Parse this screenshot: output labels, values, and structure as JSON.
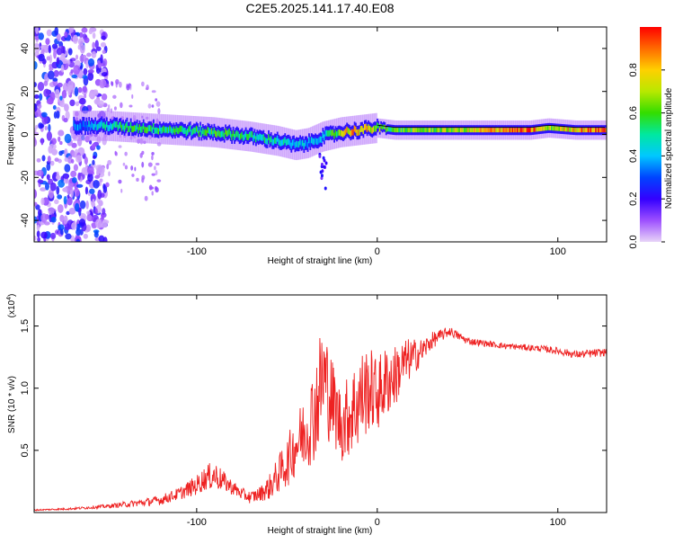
{
  "figure_title": "C2E5.2025.141.17.40.E08",
  "colorbar_stops": [
    "#e8d4f8",
    "#9d4fff",
    "#3300ff",
    "#0044ff",
    "#00c8ff",
    "#00e8a0",
    "#33dd00",
    "#b8e800",
    "#ffd000",
    "#ff6a00",
    "#ff0000"
  ],
  "chart_data": [
    {
      "type": "heatmap",
      "title": "C2E5.2025.141.17.40.E08",
      "xlabel": "Height of straight line (km)",
      "ylabel": "Frequency (Hz)",
      "xlim": [
        -190,
        127
      ],
      "ylim": [
        -50,
        50
      ],
      "xticks": [
        -100,
        0,
        100
      ],
      "yticks": [
        -40,
        -20,
        0,
        20,
        40
      ],
      "colorbar": {
        "label": "Normalized spectral amplitude",
        "range": [
          0,
          1
        ],
        "ticks": [
          "0.0",
          "0.2",
          "0.4",
          "0.6",
          "0.8"
        ]
      },
      "ridge": {
        "description": "dominant spectral band",
        "x": [
          -168,
          -150,
          -130,
          -110,
          -90,
          -70,
          -55,
          -45,
          -38,
          -30,
          -20,
          -10,
          0,
          10,
          30,
          50,
          70,
          85,
          95,
          110,
          127
        ],
        "freq": [
          4,
          4,
          3,
          2,
          1,
          -1,
          -3,
          -5,
          -4,
          -1,
          1,
          2,
          3,
          2,
          2,
          2,
          2,
          2,
          3,
          2,
          2
        ],
        "amplitude": [
          0.35,
          0.5,
          0.6,
          0.55,
          0.6,
          0.55,
          0.5,
          0.45,
          0.4,
          0.45,
          0.75,
          0.9,
          0.7,
          0.65,
          0.7,
          0.75,
          0.95,
          0.95,
          0.7,
          0.9,
          1.0
        ]
      },
      "noise_region": {
        "x": [
          -190,
          -150
        ],
        "freq": [
          -50,
          50
        ],
        "amplitude": "low (0.05-0.3)"
      }
    },
    {
      "type": "line",
      "xlabel": "Height of straight line (km)",
      "ylabel": "SNR (10 * v/v)",
      "exponent_label": "(x10",
      "exponent_power": "4",
      "exponent_close": ")",
      "xlim": [
        -190,
        127
      ],
      "ylim": [
        0,
        17500
      ],
      "xticks": [
        -100,
        0,
        100
      ],
      "yticks": [
        5000,
        10000,
        15000
      ],
      "ytick_labels": [
        "0.5",
        "1.0",
        "1.5"
      ],
      "color": "#ee2222",
      "x": [
        -190,
        -170,
        -150,
        -130,
        -120,
        -110,
        -100,
        -95,
        -90,
        -85,
        -80,
        -75,
        -70,
        -65,
        -60,
        -55,
        -50,
        -45,
        -40,
        -35,
        -30,
        -25,
        -20,
        -15,
        -10,
        -5,
        0,
        5,
        10,
        15,
        20,
        25,
        30,
        35,
        40,
        45,
        50,
        60,
        70,
        80,
        90,
        100,
        110,
        120,
        127
      ],
      "y": [
        200,
        300,
        500,
        800,
        1000,
        1500,
        2200,
        2800,
        3000,
        2500,
        2000,
        1500,
        1200,
        1500,
        2000,
        3000,
        4000,
        5500,
        6500,
        8000,
        11000,
        9000,
        7000,
        8000,
        9000,
        10000,
        9500,
        10500,
        11000,
        12000,
        12500,
        13000,
        13800,
        14200,
        14600,
        14200,
        13800,
        13600,
        13400,
        13300,
        13200,
        13000,
        12700,
        12800,
        12900
      ],
      "jitter": [
        50,
        80,
        150,
        300,
        400,
        500,
        800,
        1000,
        1200,
        800,
        600,
        500,
        500,
        600,
        1000,
        1500,
        2000,
        2500,
        3000,
        4000,
        5000,
        3500,
        3000,
        3500,
        4000,
        3500,
        3000,
        3000,
        2500,
        2000,
        1500,
        1000,
        700,
        500,
        400,
        350,
        300,
        250,
        250,
        250,
        250,
        300,
        300,
        350,
        300
      ]
    }
  ]
}
